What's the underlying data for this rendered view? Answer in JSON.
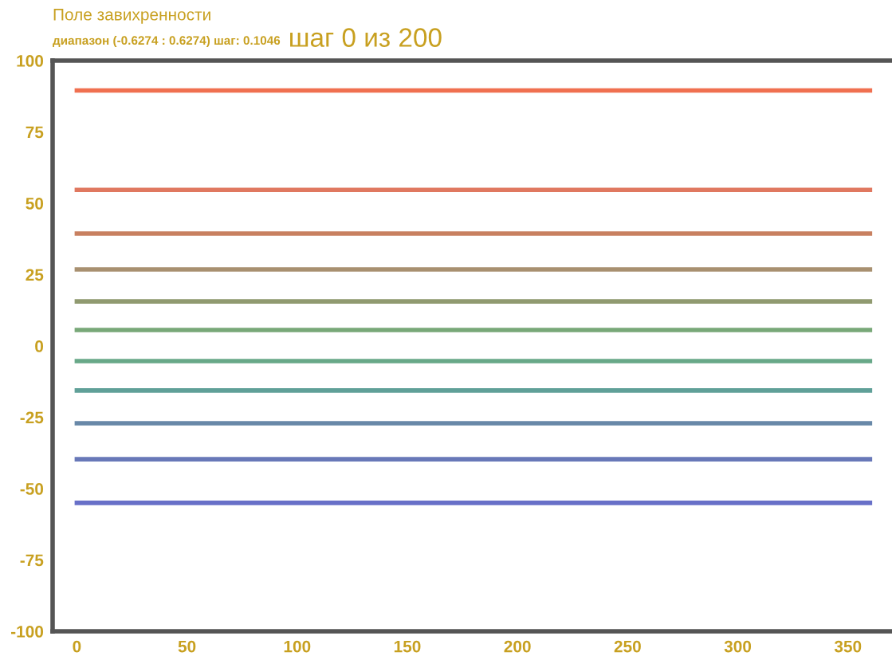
{
  "chart_data": {
    "type": "line",
    "title": "Поле завихренности",
    "subtitle": "диапазон (-0.6274 : 0.6274) шаг: 0.1046",
    "annotations": [
      "шаг 0 из 200"
    ],
    "x": [
      0,
      360
    ],
    "series": [
      {
        "color": "#f07050",
        "values": [
          89.5,
          89.5
        ]
      },
      {
        "color": "#e07860",
        "values": [
          54.7,
          54.7
        ]
      },
      {
        "color": "#c88060",
        "values": [
          39.4,
          39.4
        ]
      },
      {
        "color": "#a89070",
        "values": [
          26.8,
          26.8
        ]
      },
      {
        "color": "#909a70",
        "values": [
          15.6,
          15.6
        ]
      },
      {
        "color": "#78a878",
        "values": [
          5.6,
          5.6
        ]
      },
      {
        "color": "#68a888",
        "values": [
          -5.3,
          -5.3
        ]
      },
      {
        "color": "#60a098",
        "values": [
          -15.6,
          -15.6
        ]
      },
      {
        "color": "#6888a8",
        "values": [
          -27.1,
          -27.1
        ]
      },
      {
        "color": "#6878b8",
        "values": [
          -39.7,
          -39.7
        ]
      },
      {
        "color": "#6870c8",
        "values": [
          -55,
          -55
        ]
      }
    ],
    "xlim": [
      -11,
      370
    ],
    "ylim": [
      -100,
      100
    ],
    "xticks": [
      0,
      50,
      100,
      150,
      200,
      250,
      300,
      350
    ],
    "yticks": [
      -100,
      -75,
      -50,
      -25,
      0,
      25,
      50,
      75,
      100
    ],
    "grid": false,
    "legend": false,
    "marker": "none",
    "line_style": "solid"
  }
}
